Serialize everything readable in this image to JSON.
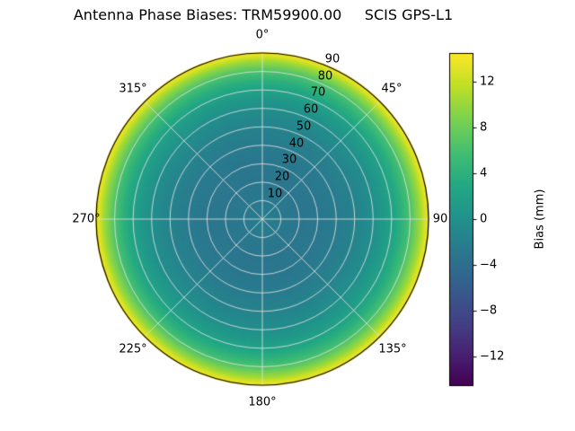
{
  "title": "Antenna Phase Biases: TRM59900.00     SCIS GPS-L1",
  "chart_data": {
    "type": "heatmap",
    "projection": "polar",
    "title": "Antenna Phase Biases: TRM59900.00     SCIS GPS-L1",
    "angular_tick_labels": [
      "0°",
      "45°",
      "90",
      "135°",
      "180°",
      "225°",
      "270°",
      "315°"
    ],
    "radial_tick_labels": [
      "10",
      "20",
      "30",
      "40",
      "50",
      "60",
      "70",
      "80",
      "90"
    ],
    "radial_tick_values": [
      10,
      20,
      30,
      40,
      50,
      60,
      70,
      80,
      90
    ],
    "radial_max": 90,
    "grid": {
      "angular_step_deg": 45,
      "radial_step": 10,
      "color": "rgba(225,225,225,0.85)",
      "visible": true
    },
    "radial_profile": {
      "zenith": [
        0,
        10,
        20,
        30,
        40,
        50,
        60,
        70,
        75,
        80,
        85,
        90
      ],
      "bias_mm": [
        -2.2,
        -2.8,
        -3.1,
        -3.0,
        -2.5,
        -1.6,
        -0.2,
        2.2,
        4.0,
        6.5,
        10.0,
        14.5
      ]
    },
    "colorbar": {
      "label": "Bias (mm)",
      "tick_labels": [
        "12",
        "8",
        "4",
        "0",
        "−4",
        "−8",
        "−12"
      ],
      "tick_values": [
        12,
        8,
        4,
        0,
        -4,
        -8,
        -12
      ],
      "vmin": -14.5,
      "vmax": 14.5
    },
    "colormap": {
      "name": "viridis",
      "stops": [
        [
          0.0,
          [
            68,
            1,
            84
          ]
        ],
        [
          0.1,
          [
            72,
            36,
            117
          ]
        ],
        [
          0.2,
          [
            65,
            68,
            135
          ]
        ],
        [
          0.3,
          [
            53,
            95,
            141
          ]
        ],
        [
          0.4,
          [
            42,
            120,
            142
          ]
        ],
        [
          0.5,
          [
            33,
            145,
            140
          ]
        ],
        [
          0.6,
          [
            34,
            168,
            132
          ]
        ],
        [
          0.7,
          [
            66,
            190,
            113
          ]
        ],
        [
          0.8,
          [
            122,
            209,
            81
          ]
        ],
        [
          0.9,
          [
            189,
            223,
            38
          ]
        ],
        [
          1.0,
          [
            253,
            231,
            37
          ]
        ]
      ]
    }
  }
}
